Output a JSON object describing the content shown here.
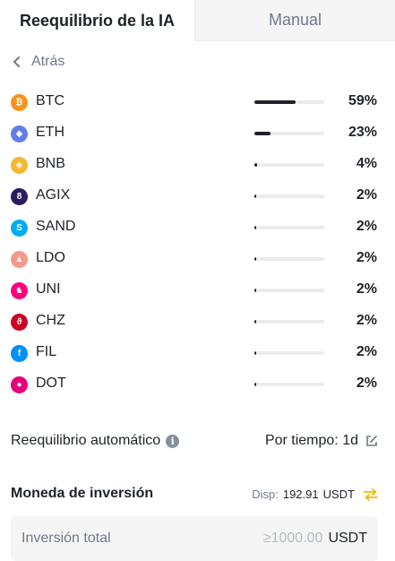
{
  "tabs": [
    {
      "label": "Reequilibrio de la IA",
      "active": true
    },
    {
      "label": "Manual",
      "active": false
    }
  ],
  "back_label": "Atrás",
  "assets": [
    {
      "symbol": "BTC",
      "percent_label": "59%",
      "percent": 59,
      "icon": "bitcoin-icon",
      "color": "#f7931a",
      "glyph": "₿"
    },
    {
      "symbol": "ETH",
      "percent_label": "23%",
      "percent": 23,
      "icon": "ethereum-icon",
      "color": "#627eea",
      "glyph": "◆"
    },
    {
      "symbol": "BNB",
      "percent_label": "4%",
      "percent": 4,
      "icon": "bnb-icon",
      "color": "#f3ba2f",
      "glyph": "◈"
    },
    {
      "symbol": "AGIX",
      "percent_label": "2%",
      "percent": 2,
      "icon": "agix-icon",
      "color": "#2c1b5e",
      "glyph": "8"
    },
    {
      "symbol": "SAND",
      "percent_label": "2%",
      "percent": 2,
      "icon": "sand-icon",
      "color": "#00adef",
      "glyph": "S"
    },
    {
      "symbol": "LDO",
      "percent_label": "2%",
      "percent": 2,
      "icon": "lido-icon",
      "color": "#f69988",
      "glyph": "▲"
    },
    {
      "symbol": "UNI",
      "percent_label": "2%",
      "percent": 2,
      "icon": "uniswap-icon",
      "color": "#ff007a",
      "glyph": "♞"
    },
    {
      "symbol": "CHZ",
      "percent_label": "2%",
      "percent": 2,
      "icon": "chiliz-icon",
      "color": "#cd0124",
      "glyph": "ϑ"
    },
    {
      "symbol": "FIL",
      "percent_label": "2%",
      "percent": 2,
      "icon": "filecoin-icon",
      "color": "#0090ff",
      "glyph": "f"
    },
    {
      "symbol": "DOT",
      "percent_label": "2%",
      "percent": 2,
      "icon": "polkadot-icon",
      "color": "#e6007a",
      "glyph": "●"
    }
  ],
  "auto_rebalance": {
    "label": "Reequilibrio automático",
    "value": "Por tiempo: 1d"
  },
  "currency": {
    "title": "Moneda de inversión",
    "available_label": "Disp:",
    "available_amount": "192.91",
    "available_unit": "USDT"
  },
  "investment": {
    "label": "Inversión total",
    "placeholder": "≥1000.00",
    "unit": "USDT"
  },
  "colors": {
    "accent": "#f0b90b",
    "text_primary": "#1e2329",
    "text_secondary": "#707a8a",
    "bar_fill": "#1e2329",
    "bar_track": "#eaecef",
    "input_bg": "#f5f5f5"
  }
}
